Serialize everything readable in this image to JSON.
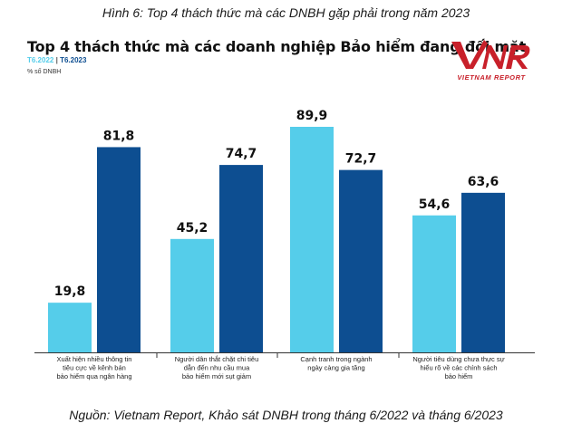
{
  "caption": "Hình 6: Top 4 thách thức mà các DNBH gặp phải trong năm 2023",
  "title": "Top 4 thách thức mà các doanh nghiệp Bảo hiểm đang đối mặt",
  "unit": "% số DNBH",
  "logo": {
    "mark": "VNR",
    "subtitle": "VIETNAM REPORT"
  },
  "source": "Nguồn: Vietnam Report, Khảo sát DNBH trong tháng 6/2022 và tháng 6/2023",
  "colors": {
    "series_2022": "#55cdea",
    "series_2023": "#0d4e91",
    "logo": "#c8202a"
  },
  "chart_data": {
    "type": "bar",
    "title": "Top 4 thách thức mà các doanh nghiệp Bảo hiểm đang đối mặt",
    "ylabel": "% số DNBH",
    "ylim": [
      0,
      100
    ],
    "grid": false,
    "legend_position": "top-left",
    "categories": [
      [
        "Xuất hiện nhiều thông tin",
        "tiêu cực về kênh bán",
        "bảo hiểm qua ngân hàng"
      ],
      [
        "Người dân thắt chặt chi tiêu",
        "dẫn đến nhu cầu mua",
        "bảo hiểm mới sụt giảm"
      ],
      [
        "Cạnh tranh trong ngành",
        "ngày càng gia tăng"
      ],
      [
        "Người tiêu dùng chưa thực sự",
        "hiểu rõ về các chính sách",
        "bảo hiểm"
      ]
    ],
    "series": [
      {
        "name": "T6.2022",
        "values": [
          19.8,
          45.2,
          89.9,
          54.6
        ],
        "labels": [
          "19,8",
          "45,2",
          "89,9",
          "54,6"
        ]
      },
      {
        "name": "T6.2023",
        "values": [
          81.8,
          74.7,
          72.7,
          63.6
        ],
        "labels": [
          "81,8",
          "74,7",
          "72,7",
          "63,6"
        ]
      }
    ]
  }
}
